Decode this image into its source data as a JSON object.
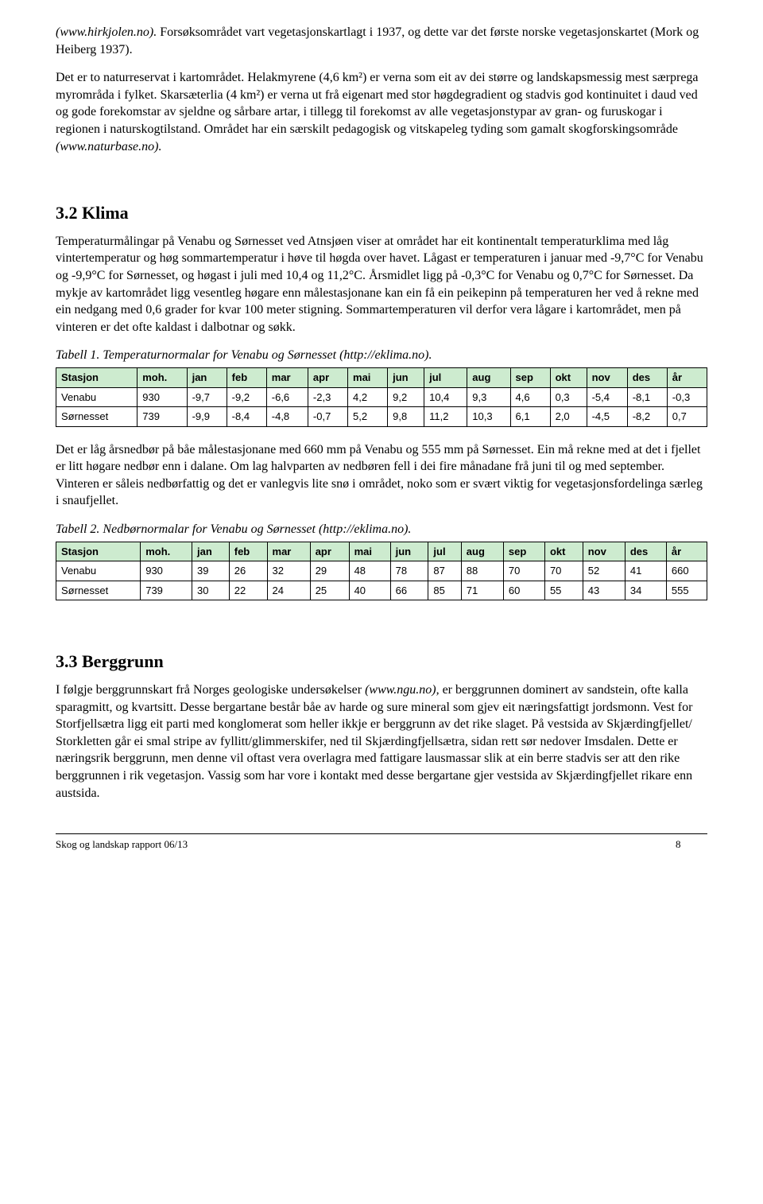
{
  "para1_prefix_italic": "(www.hirkjolen.no).",
  "para1_rest": " Forsøksområdet vart vegetasjonskartlagt i 1937, og dette var det første norske vegetasjonskartet (Mork og Heiberg 1937).",
  "para2": "Det er to naturreservat i kartområdet. Helakmyrene (4,6 km²) er verna som eit av dei større og landskapsmessig mest særprega myrområda i fylket. Skarsæterlia (4 km²) er verna ut frå eigenart med stor høgdegradient og stadvis god kontinuitet i daud ved og gode forekomstar av sjeldne og sårbare artar, i tillegg til forekomst av alle vegetasjonstypar av gran- og furuskogar i regionen i naturskogtilstand. Området har ein særskilt pedagogisk og vitskapeleg tyding som gamalt skogforskingsområde ",
  "para2_italic": "(www.naturbase.no).",
  "h_klima": "3.2 Klima",
  "klima_p1": "Temperaturmålingar på Venabu og Sørnesset ved Atnsjøen viser at området har eit kontinentalt temperaturklima med låg vintertemperatur og høg sommartemperatur i høve til høgda over havet. Lågast er temperaturen i januar med -9,7°C for Venabu og -9,9°C for Sørnesset, og høgast i juli med 10,4 og 11,2°C. Årsmidlet ligg på -0,3°C for Venabu og 0,7°C for Sørnesset. Da mykje av kartområdet ligg vesentleg høgare enn målestasjonane kan ein få ein peikepinn på temperaturen her ved å rekne med ein nedgang med 0,6 grader for kvar 100 meter stigning. Sommartemperaturen vil derfor vera lågare i kartområdet, men på vinteren er det ofte kaldast i dalbotnar og søkk.",
  "table1_caption": "Tabell 1. Temperaturnormalar for Venabu og Sørnesset (http://eklima.no).",
  "table_headers": [
    "Stasjon",
    "moh.",
    "jan",
    "feb",
    "mar",
    "apr",
    "mai",
    "jun",
    "jul",
    "aug",
    "sep",
    "okt",
    "nov",
    "des",
    "år"
  ],
  "table1_rows": [
    [
      "Venabu",
      "930",
      "-9,7",
      "-9,2",
      "-6,6",
      "-2,3",
      "4,2",
      "9,2",
      "10,4",
      "9,3",
      "4,6",
      "0,3",
      "-5,4",
      "-8,1",
      "-0,3"
    ],
    [
      "Sørnesset",
      "739",
      "-9,9",
      "-8,4",
      "-4,8",
      "-0,7",
      "5,2",
      "9,8",
      "11,2",
      "10,3",
      "6,1",
      "2,0",
      "-4,5",
      "-8,2",
      "0,7"
    ]
  ],
  "klima_p2": "Det er låg årsnedbør på båe målestasjonane med 660 mm på Venabu og 555 mm på Sørnesset. Ein må rekne med at det i fjellet er litt høgare nedbør enn i dalane. Om lag halvparten av nedbøren fell i dei fire månadane frå juni til og med september. Vinteren er såleis nedbørfattig og det er vanlegvis lite snø i området, noko som er svært viktig for vegetasjonsfordelinga særleg i snaufjellet.",
  "table2_caption": "Tabell 2. Nedbørnormalar for Venabu og Sørnesset (http://eklima.no).",
  "table2_rows": [
    [
      "Venabu",
      "930",
      "39",
      "26",
      "32",
      "29",
      "48",
      "78",
      "87",
      "88",
      "70",
      "70",
      "52",
      "41",
      "660"
    ],
    [
      "Sørnesset",
      "739",
      "30",
      "22",
      "24",
      "25",
      "40",
      "66",
      "85",
      "71",
      "60",
      "55",
      "43",
      "34",
      "555"
    ]
  ],
  "h_berg": "3.3 Berggrunn",
  "berg_p_pre": "I følgje berggrunnskart frå Norges geologiske undersøkelser ",
  "berg_p_italic": "(www.ngu.no),",
  "berg_p_post": " er berggrunnen dominert av sandstein, ofte kalla sparagmitt, og kvartsitt. Desse bergartane består båe av harde og sure mineral som gjev eit næringsfattigt jordsmonn. Vest for Storfjellsætra ligg eit parti med konglomerat som heller ikkje er berggrunn av det rike slaget. På vestsida av Skjærdingfjellet/ Storkletten går ei smal stripe av fyllitt/glimmerskifer, ned til Skjærdingfjellsætra, sidan rett sør nedover Imsdalen. Dette er næringsrik berggrunn, men denne vil oftast vera overlagra med fattigare lausmassar slik at ein berre stadvis ser att den rike berggrunnen i rik vegetasjon. Vassig som har vore i kontakt med desse bergartane gjer vestsida av Skjærdingfjellet rikare enn austsida.",
  "footer_text": "Skog og landskap rapport 06/13",
  "footer_page": "8",
  "colors": {
    "header_bg": "#cdebcf",
    "border": "#000000",
    "text": "#000000",
    "background": "#ffffff"
  }
}
